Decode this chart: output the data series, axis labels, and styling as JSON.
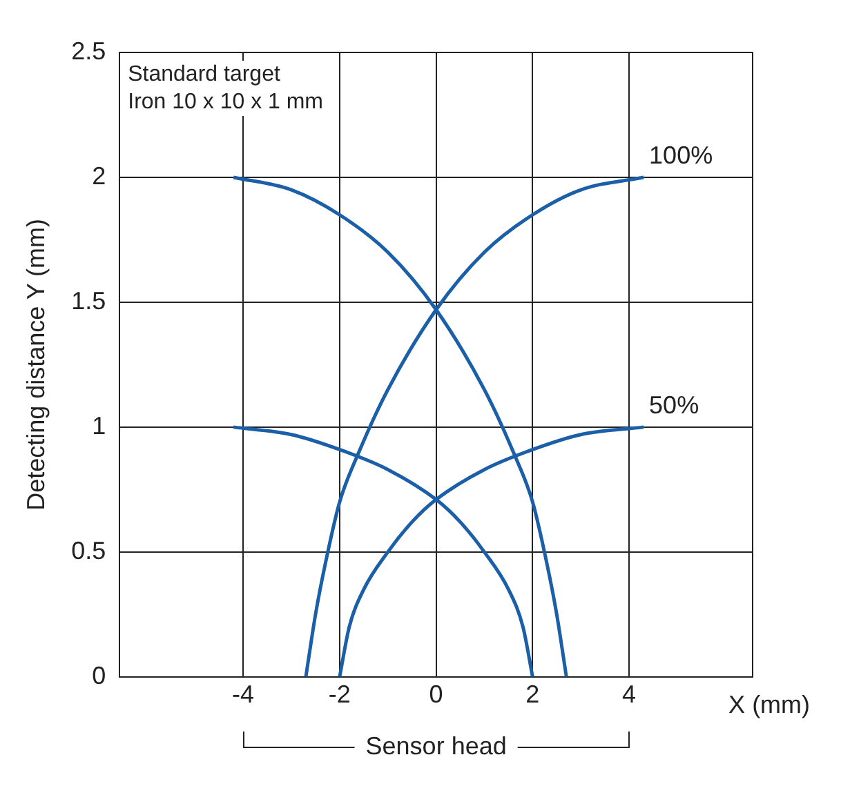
{
  "chart_data": {
    "type": "line",
    "xlabel": "X (mm)",
    "ylabel": "Detecting distance Y (mm)",
    "annotations": [
      "Standard target",
      "Iron 10 x 10 x 1 mm",
      "Sensor head"
    ],
    "xlim": [
      -6.56,
      6.56
    ],
    "xticks": [
      -4,
      -2,
      0,
      2,
      4
    ],
    "ylim": [
      0,
      2.5
    ],
    "yticks": [
      0,
      0.5,
      1,
      1.5,
      2,
      2.5
    ],
    "grid": true,
    "legend": false,
    "marker": "none",
    "line_style": "solid",
    "series": [
      {
        "color": "#1a5fa8",
        "x": [
          -4.2,
          -3,
          -2,
          -1,
          0,
          1,
          1.6,
          2,
          2.3,
          2.5,
          2.7
        ],
        "values": [
          2.0,
          1.95,
          1.85,
          1.7,
          1.47,
          1.15,
          0.9,
          0.7,
          0.45,
          0.25,
          0
        ]
      },
      {
        "name": "100%",
        "color": "#1a5fa8",
        "x": [
          -2.7,
          -2.5,
          -2.3,
          -2,
          -1.6,
          -1,
          0,
          1,
          2,
          3,
          4.3
        ],
        "values": [
          0,
          0.25,
          0.45,
          0.7,
          0.9,
          1.15,
          1.47,
          1.7,
          1.85,
          1.95,
          2.0
        ]
      },
      {
        "color": "#1a5fa8",
        "x": [
          -4.2,
          -3,
          -2,
          -1,
          0,
          0.5,
          1,
          1.5,
          1.8,
          2
        ],
        "values": [
          1.0,
          0.97,
          0.91,
          0.83,
          0.71,
          0.62,
          0.5,
          0.35,
          0.2,
          0
        ]
      },
      {
        "name": "50%",
        "color": "#1a5fa8",
        "x": [
          -2,
          -1.8,
          -1.5,
          -1,
          -0.5,
          0,
          1,
          2,
          3,
          4.3
        ],
        "values": [
          0,
          0.2,
          0.35,
          0.5,
          0.62,
          0.71,
          0.83,
          0.91,
          0.97,
          1.0
        ]
      }
    ]
  }
}
